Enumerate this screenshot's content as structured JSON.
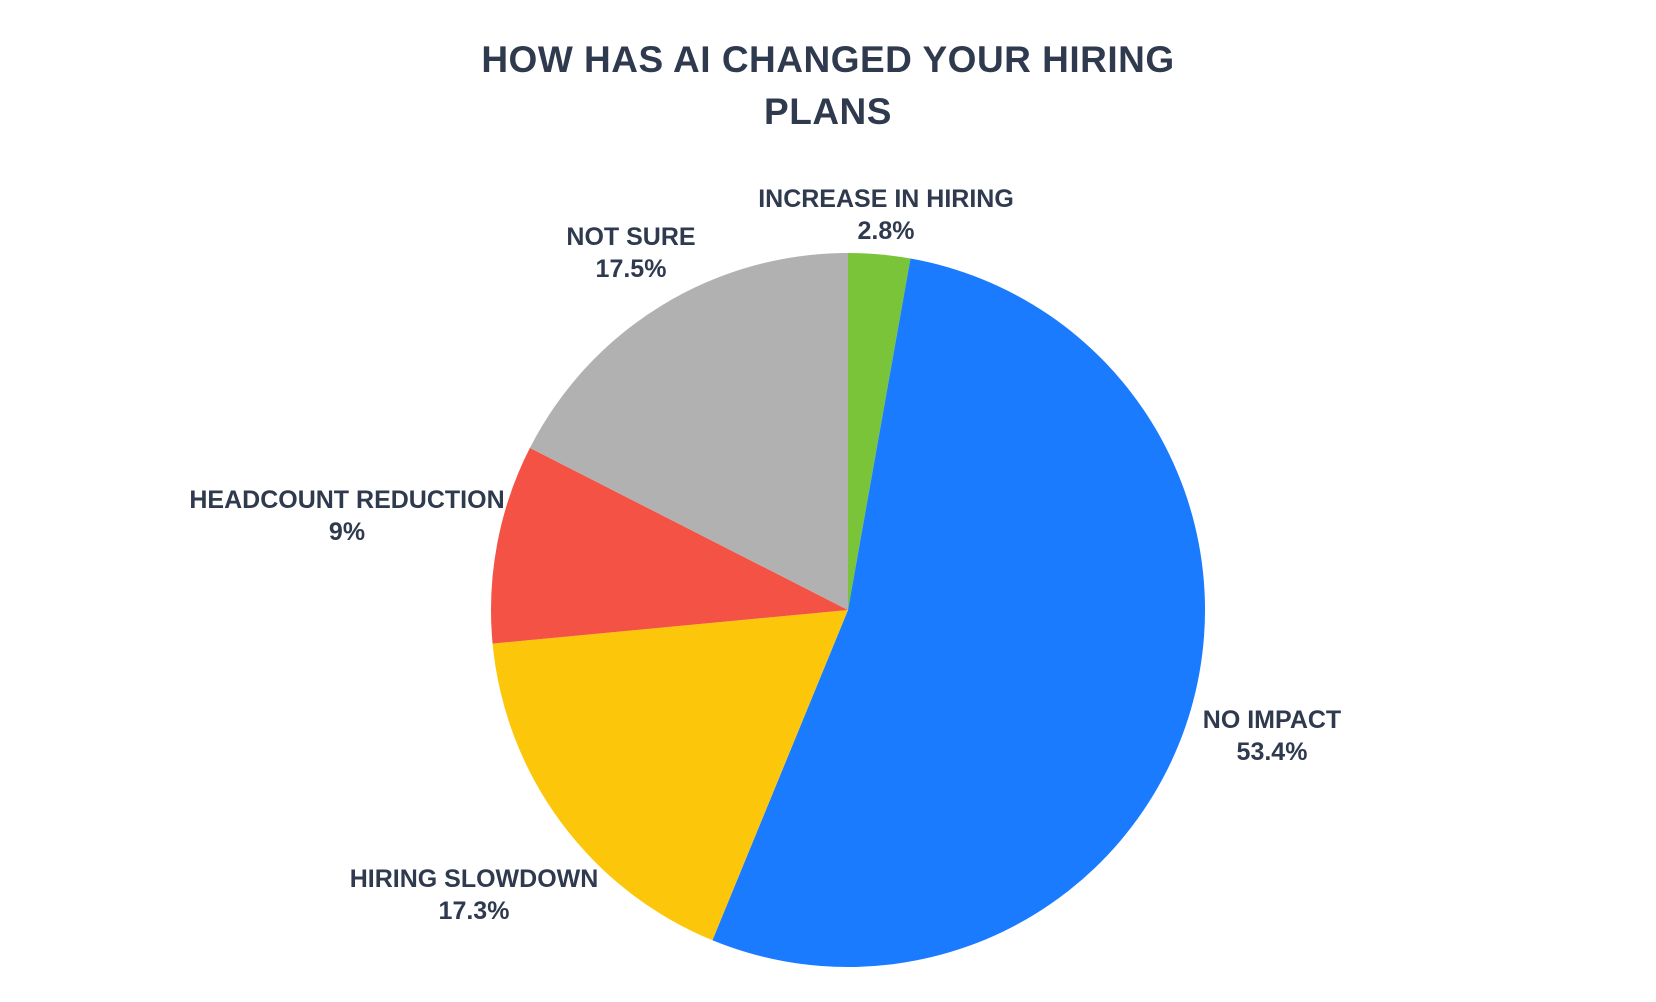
{
  "chart_data": {
    "type": "pie",
    "title": "HOW HAS AI CHANGED YOUR HIRING PLANS",
    "title_lines": [
      "HOW HAS AI CHANGED YOUR HIRING",
      "PLANS"
    ],
    "start_angle_deg": 0,
    "direction": "clockwise",
    "legend": "none",
    "slices": [
      {
        "label": "INCREASE IN HIRING",
        "value": 2.8,
        "value_label": "2.8%",
        "color": "#7AC43A"
      },
      {
        "label": "NO IMPACT",
        "value": 53.4,
        "value_label": "53.4%",
        "color": "#1B7BFF"
      },
      {
        "label": "HIRING SLOWDOWN",
        "value": 17.3,
        "value_label": "17.3%",
        "color": "#FCC70A"
      },
      {
        "label": "HEADCOUNT REDUCTION",
        "value": 9,
        "value_label": "9%",
        "color": "#F35244"
      },
      {
        "label": "NOT SURE",
        "value": 17.5,
        "value_label": "17.5%",
        "color": "#B1B1B1"
      }
    ]
  }
}
